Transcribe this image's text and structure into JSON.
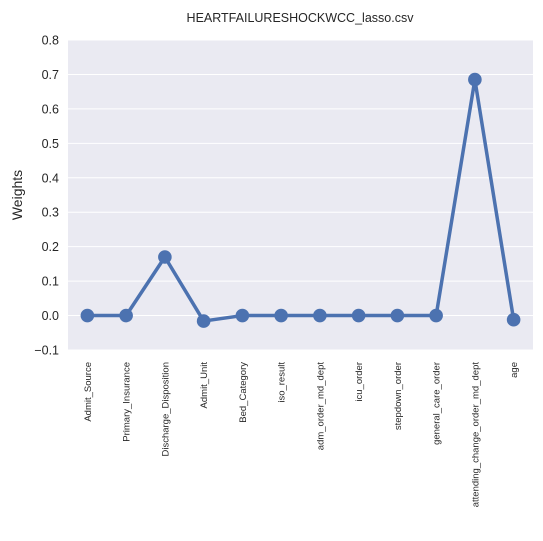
{
  "chart_data": {
    "type": "line",
    "title": "HEARTFAILURESHOCKWCC_lasso.csv",
    "xlabel": "",
    "ylabel": "Weights",
    "categories": [
      "Admit_Source",
      "Primary_Insurance",
      "Discharge_Disposition",
      "Admit_Unit",
      "Bed_Category",
      "iso_result",
      "adm_order_md_dept",
      "icu_order",
      "stepdown_order",
      "general_care_order",
      "attending_change_order_md_dept",
      "age"
    ],
    "values": [
      0.0,
      0.0,
      0.17,
      -0.016,
      0.0,
      0.0,
      0.0,
      0.0,
      0.0,
      0.0,
      0.685,
      -0.012
    ],
    "ylim": [
      -0.1,
      0.8
    ],
    "yticks": [
      -0.1,
      0.0,
      0.1,
      0.2,
      0.3,
      0.4,
      0.5,
      0.6,
      0.7,
      0.8
    ],
    "ytick_labels": [
      "−0.1",
      "0.0",
      "0.1",
      "0.2",
      "0.3",
      "0.4",
      "0.5",
      "0.6",
      "0.7",
      "0.8"
    ],
    "grid": true,
    "legend": "none",
    "colors": {
      "background": "#eaeaf2",
      "grid": "#ffffff",
      "line": "#4c72b0"
    }
  }
}
